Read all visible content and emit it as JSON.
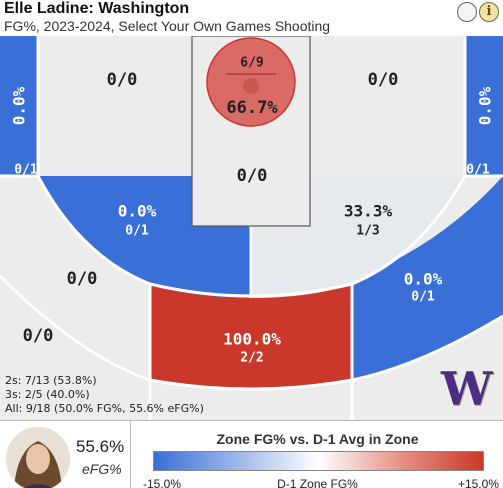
{
  "header": {
    "title": "Elle Ladine: Washington",
    "subtitle": "FG%, 2023-2024, Select Your Own Games Shooting",
    "info_glyph": "i"
  },
  "zones": {
    "left_corner_three": {
      "pct": "0.0%",
      "frac": "0/1"
    },
    "right_corner_three": {
      "pct": "0.0%",
      "frac": "0/1"
    },
    "left_baseline_mid": {
      "frac": "0/0"
    },
    "right_baseline_mid": {
      "frac": "0/0"
    },
    "restricted_area": {
      "frac": "6/9",
      "pct": "66.7%"
    },
    "paint": {
      "frac": "0/0"
    },
    "left_elbow_mid": {
      "pct": "0.0%",
      "frac": "0/1"
    },
    "right_elbow_mid": {
      "pct": "33.3%",
      "frac": "1/3"
    },
    "left_wing_three": {
      "frac": "0/0"
    },
    "right_wing_three": {
      "pct": "0.0%",
      "frac": "0/1"
    },
    "top_of_key_three": {
      "pct": "100.0%",
      "frac": "2/2"
    },
    "left_deep_three": {
      "frac": "0/0"
    }
  },
  "stats": {
    "twos": "2s: 7/13 (53.8%)",
    "threes": "3s: 2/5 (40.0%)",
    "all": "All: 9/18 (50.0% FG%, 55.6% eFG%)"
  },
  "logo_text": "W",
  "footer": {
    "efg_value": "55.6%",
    "efg_label": "eFG%",
    "legend_title": "Zone FG% vs. D-1 Avg in Zone",
    "legend_min": "-15.0%",
    "legend_mid": "D-1 Zone FG%",
    "legend_max": "+15.0%"
  },
  "colors": {
    "blue": "#3a6fd8",
    "light_gray": "#ececec",
    "pale_blue_gray": "#e6eaef",
    "red": "#c9382a",
    "restricted_red": "#d96a66",
    "husky_purple": "#4b2e83",
    "husky_gold": "#b7a57a"
  },
  "icons": [
    "circle-icon",
    "info-icon",
    "player-avatar",
    "washington-logo"
  ]
}
